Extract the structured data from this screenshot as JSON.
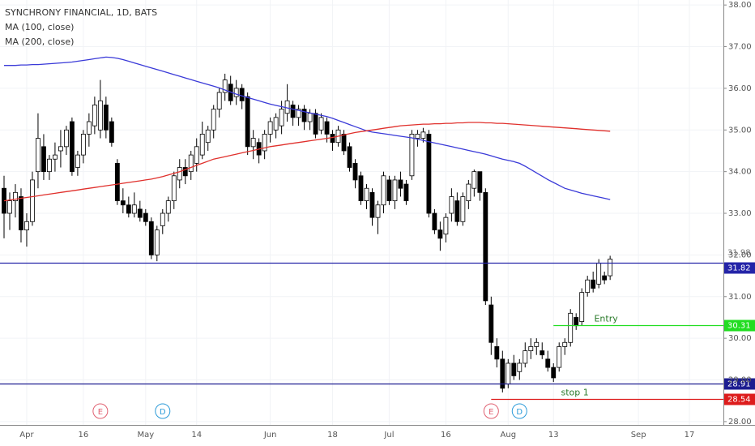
{
  "chart_data": {
    "type": "candlestick",
    "title": "SYNCHRONY FINANCIAL, 1D, BATS",
    "categories": [
      null,
      null,
      null,
      null,
      "Apr",
      null,
      null,
      null,
      null,
      null,
      null,
      null,
      null,
      null,
      "16",
      null,
      null,
      null,
      null,
      null,
      null,
      null,
      null,
      null,
      null,
      "May",
      null,
      null,
      null,
      null,
      null,
      null,
      null,
      null,
      "14",
      null,
      null,
      null,
      null,
      null,
      null,
      null,
      null,
      null,
      null,
      null,
      null,
      "Jun",
      null,
      null,
      null,
      null,
      null,
      null,
      null,
      null,
      null,
      null,
      "18",
      null,
      null,
      null,
      null,
      null,
      null,
      null,
      null,
      null,
      "Jul",
      null,
      null,
      null,
      null,
      null,
      null,
      null,
      null,
      null,
      "16",
      null,
      null,
      null,
      null,
      null,
      null,
      null,
      null,
      null,
      null,
      "Aug",
      null,
      null,
      null,
      null,
      null,
      null,
      null,
      "13",
      null,
      null,
      null,
      null,
      null,
      null,
      null,
      null,
      null,
      null,
      null,
      null,
      null,
      null,
      "Sep",
      null,
      null,
      null,
      null,
      null,
      null,
      null,
      null,
      "17",
      null,
      null,
      null,
      null,
      null
    ],
    "open": [
      33.6,
      33.0,
      33.3,
      33.4,
      32.6,
      32.8,
      34.0,
      34.6,
      34.0,
      34.3,
      34.5,
      34.6,
      35.2,
      34.1,
      34.4,
      34.9,
      35.1,
      35.0,
      35.6,
      35.2,
      34.2,
      33.3,
      33.2,
      33.0,
      33.1,
      33.0,
      32.8,
      32.0,
      32.7,
      33.0,
      33.3,
      33.8,
      34.1,
      34.0,
      34.2,
      34.4,
      34.7,
      35.0,
      35.5,
      35.9,
      36.1,
      35.8,
      36.0,
      35.8,
      34.6,
      34.7,
      34.5,
      34.9,
      35.0,
      35.1,
      35.4,
      35.6,
      35.3,
      35.5,
      35.2,
      35.4,
      35.0,
      35.2,
      34.9,
      34.7,
      34.9,
      34.6,
      34.2,
      33.9,
      33.3,
      33.5,
      32.9,
      33.2,
      33.8,
      33.3,
      33.8,
      33.7,
      33.9,
      34.8,
      34.8,
      34.9,
      33.0,
      32.6,
      32.5,
      33.0,
      33.3,
      32.8,
      33.3,
      33.6,
      34.0,
      33.5,
      30.8,
      29.8,
      29.5,
      28.9,
      29.4,
      29.2,
      29.4,
      29.7,
      29.8,
      29.7,
      29.5,
      29.3,
      29.3,
      29.8,
      29.9,
      30.5,
      30.4,
      31.1,
      31.4,
      31.3,
      31.5,
      31.5,
      null,
      null,
      null,
      null,
      null,
      null,
      null,
      null,
      null,
      null,
      null,
      null,
      null,
      null,
      null,
      null,
      null,
      null,
      null
    ],
    "high": [
      33.9,
      33.5,
      33.7,
      33.6,
      33.0,
      34.0,
      35.4,
      34.9,
      34.4,
      34.7,
      35.0,
      35.1,
      35.3,
      34.5,
      35.0,
      35.4,
      35.8,
      36.2,
      35.8,
      35.3,
      34.3,
      33.6,
      33.4,
      33.5,
      33.3,
      33.1,
      32.9,
      32.7,
      33.1,
      33.4,
      34.0,
      34.3,
      34.3,
      34.5,
      34.8,
      35.2,
      35.1,
      35.6,
      36.0,
      36.35,
      36.3,
      36.2,
      36.1,
      35.9,
      35.0,
      34.8,
      35.0,
      35.3,
      35.4,
      35.7,
      36.1,
      35.7,
      35.6,
      35.6,
      35.5,
      35.5,
      35.4,
      35.3,
      35.0,
      35.1,
      35.0,
      34.7,
      34.3,
      34.0,
      33.7,
      33.6,
      33.3,
      34.0,
      33.9,
      33.9,
      34.0,
      33.8,
      35.0,
      35.0,
      35.05,
      35.0,
      33.1,
      32.8,
      33.0,
      33.6,
      33.5,
      33.5,
      33.8,
      34.05,
      34.0,
      33.6,
      31.0,
      30.0,
      29.7,
      29.5,
      29.6,
      29.5,
      29.9,
      30.0,
      30.0,
      29.9,
      29.7,
      29.4,
      29.9,
      30.0,
      30.7,
      30.6,
      31.2,
      31.5,
      31.6,
      31.9,
      31.6,
      31.98,
      null,
      null,
      null,
      null,
      null,
      null,
      null,
      null,
      null,
      null,
      null,
      null,
      null,
      null,
      null,
      null,
      null,
      null,
      null
    ],
    "low": [
      32.4,
      32.6,
      32.9,
      32.3,
      32.2,
      32.7,
      33.6,
      33.8,
      33.8,
      34.0,
      34.1,
      34.4,
      33.9,
      33.9,
      34.2,
      34.6,
      34.9,
      34.8,
      34.8,
      34.6,
      33.2,
      33.0,
      32.9,
      32.9,
      32.8,
      32.7,
      31.9,
      31.85,
      32.5,
      32.8,
      33.1,
      33.6,
      33.7,
      33.8,
      34.0,
      34.3,
      34.5,
      34.8,
      35.3,
      35.7,
      35.6,
      35.6,
      35.5,
      34.4,
      34.3,
      34.2,
      34.3,
      34.7,
      34.8,
      34.9,
      35.2,
      35.1,
      35.1,
      35.0,
      35.0,
      34.8,
      34.9,
      34.7,
      34.5,
      34.6,
      34.4,
      34.0,
      33.6,
      33.2,
      33.1,
      32.7,
      32.5,
      33.0,
      33.2,
      33.1,
      33.4,
      33.2,
      33.8,
      34.6,
      34.7,
      32.9,
      32.5,
      32.1,
      32.3,
      32.8,
      32.7,
      32.7,
      33.1,
      33.4,
      33.3,
      30.8,
      29.6,
      29.3,
      28.7,
      28.8,
      29.0,
      29.0,
      29.3,
      29.5,
      29.6,
      29.5,
      29.2,
      28.95,
      29.2,
      29.6,
      29.8,
      30.2,
      30.3,
      31.0,
      31.1,
      31.2,
      31.3,
      31.4,
      null,
      null,
      null,
      null,
      null,
      null,
      null,
      null,
      null,
      null,
      null,
      null,
      null,
      null,
      null,
      null,
      null,
      null,
      null
    ],
    "close": [
      33.0,
      33.3,
      33.5,
      32.6,
      32.8,
      33.8,
      34.8,
      34.0,
      34.3,
      34.4,
      34.6,
      35.0,
      34.0,
      34.4,
      34.9,
      35.2,
      35.6,
      35.7,
      35.0,
      34.7,
      33.3,
      33.2,
      33.0,
      33.2,
      32.9,
      32.8,
      32.0,
      32.6,
      33.0,
      33.3,
      33.9,
      34.1,
      33.9,
      34.4,
      34.6,
      34.9,
      35.0,
      35.5,
      35.9,
      36.2,
      35.7,
      36.0,
      35.7,
      34.6,
      34.8,
      34.4,
      34.9,
      35.2,
      35.3,
      35.5,
      35.7,
      35.3,
      35.5,
      35.2,
      35.4,
      34.9,
      35.3,
      34.9,
      34.7,
      35.0,
      34.5,
      34.1,
      33.8,
      33.3,
      33.6,
      32.9,
      33.2,
      33.9,
      33.3,
      33.8,
      33.6,
      33.3,
      34.9,
      34.9,
      34.95,
      33.0,
      32.6,
      32.4,
      32.9,
      33.4,
      32.8,
      33.4,
      33.7,
      34.0,
      33.5,
      30.9,
      29.9,
      29.5,
      28.8,
      29.4,
      29.1,
      29.4,
      29.7,
      29.8,
      29.9,
      29.6,
      29.3,
      29.05,
      29.8,
      29.9,
      30.6,
      30.3,
      31.1,
      31.4,
      31.2,
      31.8,
      31.4,
      31.9,
      null,
      null,
      null,
      null,
      null,
      null,
      null,
      null,
      null,
      null,
      null,
      null,
      null,
      null,
      null,
      null,
      null,
      null,
      null
    ],
    "series": [
      {
        "name": "MA (100, close)",
        "color": "#3a3ad8",
        "values": [
          36.55,
          36.55,
          36.55,
          36.56,
          36.56,
          36.57,
          36.57,
          36.58,
          36.59,
          36.6,
          36.61,
          36.62,
          36.63,
          36.65,
          36.67,
          36.69,
          36.71,
          36.73,
          36.75,
          36.74,
          36.72,
          36.69,
          36.65,
          36.61,
          36.57,
          36.53,
          36.49,
          36.45,
          36.41,
          36.37,
          36.33,
          36.29,
          36.25,
          36.21,
          36.17,
          36.13,
          36.09,
          36.05,
          36.01,
          35.96,
          35.91,
          35.86,
          35.82,
          35.78,
          35.74,
          35.7,
          35.66,
          35.62,
          35.59,
          35.56,
          35.53,
          35.5,
          35.47,
          35.44,
          35.41,
          35.38,
          35.35,
          35.32,
          35.28,
          35.23,
          35.18,
          35.13,
          35.08,
          35.03,
          34.98,
          34.95,
          34.93,
          34.91,
          34.89,
          34.87,
          34.85,
          34.83,
          34.81,
          34.78,
          34.75,
          34.72,
          34.69,
          34.66,
          34.63,
          34.6,
          34.57,
          34.54,
          34.51,
          34.48,
          34.45,
          34.42,
          34.38,
          34.34,
          34.3,
          34.27,
          34.24,
          34.2,
          34.13,
          34.05,
          33.97,
          33.89,
          33.81,
          33.74,
          33.67,
          33.6,
          33.56,
          33.52,
          33.48,
          33.45,
          33.42,
          33.39,
          33.36,
          33.33,
          null,
          null,
          null,
          null,
          null,
          null,
          null,
          null,
          null,
          null,
          null,
          null,
          null,
          null,
          null,
          null,
          null,
          null,
          null
        ]
      },
      {
        "name": "MA (200, close)",
        "color": "#e0302c",
        "values": [
          33.3,
          33.32,
          33.34,
          33.36,
          33.38,
          33.4,
          33.42,
          33.44,
          33.46,
          33.48,
          33.5,
          33.52,
          33.54,
          33.56,
          33.58,
          33.6,
          33.62,
          33.64,
          33.66,
          33.68,
          33.7,
          33.72,
          33.74,
          33.76,
          33.78,
          33.8,
          33.82,
          33.85,
          33.88,
          33.92,
          33.96,
          34.0,
          34.05,
          34.1,
          34.15,
          34.2,
          34.25,
          34.3,
          34.33,
          34.36,
          34.39,
          34.42,
          34.45,
          34.48,
          34.51,
          34.54,
          34.57,
          34.6,
          34.62,
          34.64,
          34.66,
          34.68,
          34.7,
          34.72,
          34.74,
          34.76,
          34.78,
          34.8,
          34.82,
          34.85,
          34.88,
          34.91,
          34.94,
          34.96,
          34.98,
          35.0,
          35.02,
          35.04,
          35.06,
          35.08,
          35.1,
          35.11,
          35.12,
          35.13,
          35.14,
          35.14,
          35.15,
          35.15,
          35.16,
          35.16,
          35.17,
          35.17,
          35.18,
          35.18,
          35.18,
          35.17,
          35.17,
          35.16,
          35.16,
          35.15,
          35.14,
          35.13,
          35.12,
          35.11,
          35.1,
          35.09,
          35.08,
          35.07,
          35.06,
          35.05,
          35.04,
          35.03,
          35.02,
          35.01,
          35.0,
          34.99,
          34.98,
          34.97,
          null,
          null,
          null,
          null,
          null,
          null,
          null,
          null,
          null,
          null,
          null,
          null,
          null,
          null,
          null,
          null,
          null,
          null,
          null
        ]
      }
    ],
    "up_color": "#ffffff",
    "down_color": "#000000",
    "ylim": [
      27.92,
      38.12
    ],
    "yticks": [
      {
        "value": 28,
        "label": "28.00"
      },
      {
        "value": 29,
        "label": "29.00"
      },
      {
        "value": 30,
        "label": "30.00"
      },
      {
        "value": 31,
        "label": "31.00"
      },
      {
        "value": 32,
        "label": "32.00"
      },
      {
        "value": 33,
        "label": "33.00"
      },
      {
        "value": 34,
        "label": "34.00"
      },
      {
        "value": 35,
        "label": "35.00"
      },
      {
        "value": 36,
        "label": "36.00"
      },
      {
        "value": 37,
        "label": "37.00"
      },
      {
        "value": 38,
        "label": "38.00"
      }
    ],
    "grid": true,
    "last_high": 31.98,
    "levels": [
      {
        "value": 31.82,
        "color": "#2424a8"
      },
      {
        "value": 30.31,
        "color": "#22dd22",
        "name": "Entry"
      },
      {
        "value": 28.91,
        "color": "#1c1c90"
      },
      {
        "value": 28.54,
        "color": "#dd1c1c",
        "name": "stop 1"
      }
    ],
    "events": [
      {
        "label": "E",
        "color": "#e06070"
      },
      {
        "label": "D",
        "color": "#2a9ad8"
      },
      {
        "label": "E",
        "color": "#e06070"
      },
      {
        "label": "D",
        "color": "#2a9ad8"
      }
    ]
  }
}
